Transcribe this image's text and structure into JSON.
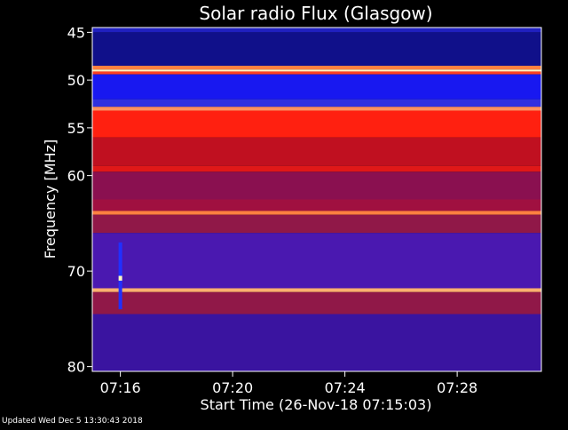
{
  "chart_data": {
    "type": "heatmap",
    "title": "Solar radio Flux (Glasgow)",
    "ylabel": "Frequency [MHz]",
    "xlabel": "Start Time (26-Nov-18 07:15:03)",
    "y_axis": {
      "range": [
        44.5,
        80.5
      ],
      "ticks": [
        45,
        50,
        55,
        60,
        70,
        80
      ],
      "inverted": true
    },
    "x_axis": {
      "range_minutes": [
        0,
        16
      ],
      "ticks": [
        {
          "label": "07:16",
          "minutes": 1.0
        },
        {
          "label": "07:20",
          "minutes": 5.0
        },
        {
          "label": "07:24",
          "minutes": 9.0
        },
        {
          "label": "07:28",
          "minutes": 13.0
        }
      ]
    },
    "frequency_bands": [
      {
        "from": 44.5,
        "to": 45.0,
        "color": "#2020c0"
      },
      {
        "from": 45.0,
        "to": 48.5,
        "color": "#10108a"
      },
      {
        "from": 48.5,
        "to": 48.9,
        "color": "#ff8040"
      },
      {
        "from": 48.9,
        "to": 49.1,
        "color": "#fff0c0"
      },
      {
        "from": 49.1,
        "to": 49.4,
        "color": "#ff4020"
      },
      {
        "from": 49.4,
        "to": 52.0,
        "color": "#1818f0"
      },
      {
        "from": 52.0,
        "to": 52.8,
        "color": "#3030e0"
      },
      {
        "from": 52.8,
        "to": 53.2,
        "color": "#ff9060"
      },
      {
        "from": 53.2,
        "to": 56.0,
        "color": "#ff2010"
      },
      {
        "from": 56.0,
        "to": 59.0,
        "color": "#c01020"
      },
      {
        "from": 59.0,
        "to": 59.6,
        "color": "#e01818"
      },
      {
        "from": 59.6,
        "to": 62.5,
        "color": "#8a1050"
      },
      {
        "from": 62.5,
        "to": 63.7,
        "color": "#a01040"
      },
      {
        "from": 63.7,
        "to": 64.1,
        "color": "#ff8040"
      },
      {
        "from": 64.1,
        "to": 66.0,
        "color": "#901848"
      },
      {
        "from": 66.0,
        "to": 71.8,
        "color": "#4a18b0"
      },
      {
        "from": 71.8,
        "to": 72.2,
        "color": "#ffb070"
      },
      {
        "from": 72.2,
        "to": 74.5,
        "color": "#901848"
      },
      {
        "from": 74.5,
        "to": 80.5,
        "color": "#3a14a0"
      }
    ],
    "events": [
      {
        "minutes": 1.0,
        "freq_from": 67.0,
        "freq_to": 74.0,
        "color": "#2030ff"
      },
      {
        "minutes": 1.0,
        "freq_from": 70.5,
        "freq_to": 71.0,
        "color": "#fff8c0"
      }
    ],
    "colors": {
      "background": "#000000",
      "axis": "#ffffff",
      "text": "#ffffff"
    }
  },
  "footer": {
    "updated": "Updated Wed Dec  5 13:30:43 2018"
  }
}
